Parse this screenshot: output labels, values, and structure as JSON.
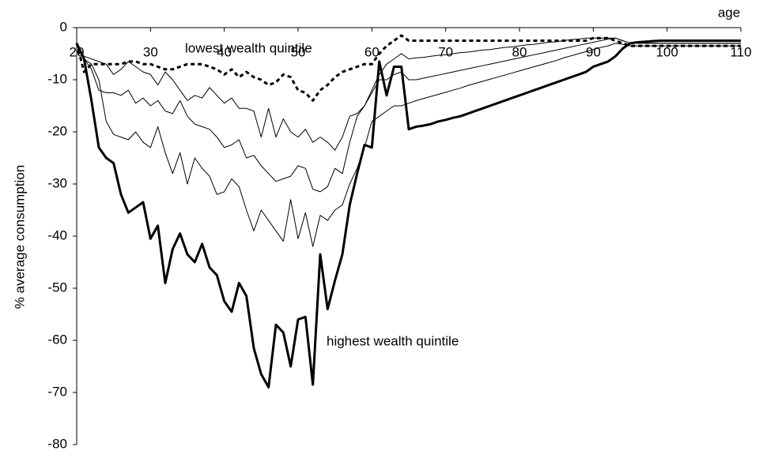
{
  "chart_data": {
    "type": "line",
    "x_label": "age",
    "y_label": "% average consumption",
    "annotations": [
      "lowest wealth quintile",
      "highest wealth quintile"
    ],
    "xlim": [
      20,
      110
    ],
    "xticks": [
      20,
      30,
      40,
      50,
      60,
      70,
      80,
      90,
      100,
      110
    ],
    "ylim": [
      -80,
      0
    ],
    "yticks": [
      0,
      -10,
      -20,
      -30,
      -40,
      -50,
      -60,
      -70,
      -80
    ],
    "x": [
      20,
      21,
      22,
      23,
      24,
      25,
      26,
      27,
      28,
      29,
      30,
      31,
      32,
      33,
      34,
      35,
      36,
      37,
      38,
      39,
      40,
      41,
      42,
      43,
      44,
      45,
      46,
      47,
      48,
      49,
      50,
      51,
      52,
      53,
      54,
      55,
      56,
      57,
      58,
      59,
      60,
      61,
      62,
      63,
      64,
      65,
      66,
      67,
      68,
      69,
      70,
      71,
      72,
      73,
      74,
      75,
      76,
      77,
      78,
      79,
      80,
      81,
      82,
      83,
      84,
      85,
      86,
      87,
      88,
      89,
      90,
      91,
      92,
      93,
      94,
      95,
      96,
      97,
      98,
      99,
      100,
      101,
      102,
      103,
      104,
      105,
      106,
      107,
      108,
      109,
      110
    ],
    "series": [
      {
        "color": "#000000",
        "line_width": 3,
        "dash": "5 4",
        "values": [
          -3,
          -8.5,
          -7,
          -7,
          -7,
          -7,
          -7,
          -6.5,
          -6.5,
          -7,
          -7,
          -7.5,
          -8,
          -8,
          -7.5,
          -7,
          -7,
          -7,
          -7.5,
          -8,
          -9,
          -8,
          -9.5,
          -8.5,
          -9.5,
          -10,
          -11,
          -10.5,
          -9,
          -9.5,
          -12,
          -12.5,
          -14,
          -12,
          -11,
          -9.5,
          -8.5,
          -8,
          -7.5,
          -7,
          -7,
          -5,
          -3.5,
          -2.5,
          -1.5,
          -2.5,
          -2.5,
          -2.5,
          -2.5,
          -2.5,
          -2.5,
          -2.5,
          -2.5,
          -2.5,
          -2.5,
          -2.5,
          -2.5,
          -2.5,
          -2.5,
          -2.5,
          -2.5,
          -2.5,
          -2.5,
          -2.5,
          -2.5,
          -2.5,
          -2.5,
          -2.5,
          -2.5,
          -2.5,
          -2,
          -2,
          -2,
          -2.5,
          -3,
          -3.5,
          -3.5,
          -3.5,
          -3.5,
          -3.5,
          -3.5,
          -3.5,
          -3.5,
          -3.5,
          -3.5,
          -3.5,
          -3.5,
          -3.5,
          -3.5,
          -3.5,
          -3.5
        ]
      },
      {
        "color": "#000000",
        "line_width": 1,
        "values": [
          -3,
          -5.5,
          -6,
          -6.5,
          -7,
          -9,
          -8,
          -6.5,
          -7.5,
          -8.5,
          -9,
          -11,
          -8.5,
          -10,
          -12,
          -14,
          -13,
          -13.5,
          -11.5,
          -13,
          -14.5,
          -13.5,
          -15.5,
          -15.5,
          -16,
          -21,
          -15.5,
          -21,
          -17.5,
          -20,
          -21,
          -19.5,
          -22,
          -21,
          -22,
          -23.5,
          -21,
          -17,
          -16.5,
          -15,
          -12,
          -9,
          -7,
          -6,
          -5,
          -6,
          -5.8,
          -5.7,
          -5.5,
          -5.3,
          -5.2,
          -5,
          -4.8,
          -4.7,
          -4.5,
          -4.3,
          -4.2,
          -4,
          -3.8,
          -3.7,
          -3.5,
          -3.3,
          -3.2,
          -3,
          -2.8,
          -2.7,
          -2.5,
          -2.3,
          -2.2,
          -2,
          -2,
          -2,
          -2,
          -2,
          -2.5,
          -3,
          -3,
          -3,
          -3,
          -3,
          -3,
          -3,
          -3,
          -3,
          -3,
          -3,
          -3,
          -3,
          -3,
          -3,
          -3
        ]
      },
      {
        "color": "#000000",
        "line_width": 1,
        "values": [
          -3,
          -6,
          -8,
          -12,
          -12.5,
          -12.5,
          -13,
          -12,
          -14.5,
          -13.5,
          -15,
          -14,
          -16,
          -16.5,
          -14,
          -17,
          -18.5,
          -19,
          -19.5,
          -21,
          -23,
          -22.5,
          -21.5,
          -25,
          -24.5,
          -26.5,
          -28,
          -29.5,
          -29,
          -28.5,
          -26.5,
          -27,
          -31,
          -31.5,
          -30.5,
          -27,
          -28,
          -22,
          -17,
          -15,
          -12.5,
          -10,
          -10,
          -9,
          -8.5,
          -10,
          -10,
          -9.7,
          -9.4,
          -9.1,
          -8.8,
          -8.5,
          -8.2,
          -7.9,
          -7.6,
          -7.3,
          -7,
          -6.7,
          -6.4,
          -6.1,
          -5.8,
          -5.5,
          -5.2,
          -4.9,
          -4.6,
          -4.3,
          -4,
          -3.7,
          -3.4,
          -3.1,
          -2.8,
          -2.5,
          -2.2,
          -2,
          -2.5,
          -3,
          -3,
          -3,
          -3,
          -3,
          -3,
          -3,
          -3,
          -3,
          -3,
          -3,
          -3,
          -3,
          -3,
          -3,
          -3
        ]
      },
      {
        "color": "#000000",
        "line_width": 1,
        "values": [
          -3,
          -6,
          -7,
          -10,
          -18,
          -20.5,
          -21,
          -21.5,
          -20,
          -22,
          -23,
          -19,
          -24,
          -28,
          -24,
          -30,
          -25,
          -27,
          -28.5,
          -32,
          -31.5,
          -29,
          -30.5,
          -35,
          -39,
          -35,
          -37,
          -39,
          -41,
          -33,
          -40.5,
          -35.5,
          -42,
          -36,
          -37,
          -35,
          -34,
          -30,
          -27,
          -23,
          -18,
          -17,
          -16,
          -15,
          -15,
          -14.5,
          -14,
          -13.6,
          -13.2,
          -12.8,
          -12.4,
          -12,
          -11.6,
          -11.1,
          -10.7,
          -10.3,
          -9.9,
          -9.5,
          -9.1,
          -8.7,
          -8.3,
          -7.9,
          -7.5,
          -7.1,
          -6.7,
          -6.3,
          -5.8,
          -5.4,
          -5,
          -4.6,
          -4.2,
          -3.8,
          -3.5,
          -3,
          -3.2,
          -3.5,
          -3.5,
          -3.5,
          -3.5,
          -3.5,
          -3.5,
          -3.5,
          -3.5,
          -3.5,
          -3.5,
          -3.5,
          -3.5,
          -3.5,
          -3.5,
          -3.5,
          -3.5
        ]
      },
      {
        "color": "#000000",
        "line_width": 3,
        "values": [
          -3,
          -6,
          -14,
          -23,
          -25,
          -26,
          -32,
          -35.5,
          -34.5,
          -33.5,
          -40.5,
          -38,
          -49,
          -42.5,
          -39.5,
          -43.5,
          -45,
          -41.5,
          -46,
          -47.5,
          -52.5,
          -54.5,
          -49,
          -51.5,
          -61.5,
          -66.5,
          -69,
          -57,
          -58.5,
          -65,
          -56,
          -55.5,
          -68.5,
          -43.5,
          -54,
          -48.5,
          -43.5,
          -34,
          -28,
          -22.5,
          -23,
          -6.5,
          -13,
          -7.5,
          -7.5,
          -19.5,
          -19,
          -18.8,
          -18.5,
          -18,
          -17.7,
          -17.3,
          -17,
          -16.5,
          -16,
          -15.5,
          -15,
          -14.5,
          -14,
          -13.5,
          -13,
          -12.5,
          -12,
          -11.5,
          -11,
          -10.5,
          -10,
          -9.5,
          -9,
          -8.5,
          -7.5,
          -7,
          -6.5,
          -5.5,
          -4,
          -3,
          -2.8,
          -2.7,
          -2.6,
          -2.5,
          -2.5,
          -2.5,
          -2.5,
          -2.5,
          -2.5,
          -2.5,
          -2.5,
          -2.5,
          -2.5,
          -2.5,
          -2.5
        ]
      }
    ]
  }
}
